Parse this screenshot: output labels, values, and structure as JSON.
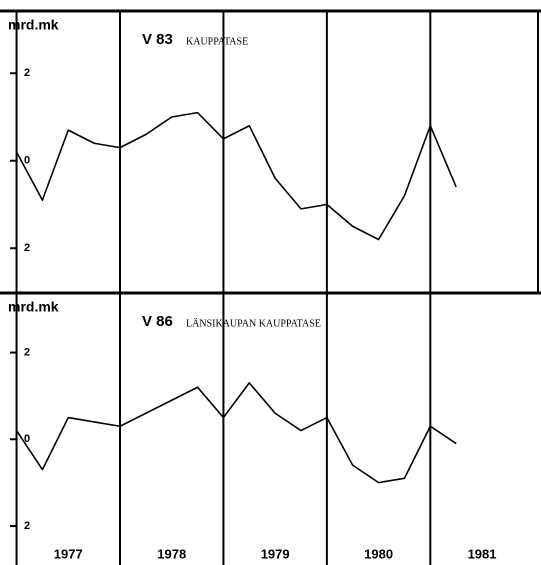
{
  "chart_data": [
    {
      "type": "line",
      "title": "V 83",
      "subtitle": "KAUPPATASE",
      "ylabel": "mrd.mk",
      "x": [
        1977,
        1977.25,
        1977.5,
        1977.75,
        1978,
        1978.25,
        1978.5,
        1978.75,
        1979,
        1979.25,
        1979.5,
        1979.75,
        1980,
        1980.25,
        1980.5,
        1980.75,
        1981,
        1981.25
      ],
      "series": [
        {
          "color": "#000000",
          "values": [
            0.2,
            -0.9,
            0.7,
            0.4,
            0.3,
            0.6,
            1.0,
            1.1,
            0.5,
            0.8,
            -0.4,
            -1.1,
            -1.0,
            -1.5,
            -1.8,
            -0.8,
            0.8,
            -0.6
          ]
        }
      ],
      "xlim": [
        1976.84,
        1982.07
      ],
      "ylim": [
        -3.0,
        3.4
      ],
      "yticks": [
        2,
        0,
        {
          "value": -2,
          "label": "2"
        }
      ]
    },
    {
      "type": "line",
      "title": "V 86",
      "subtitle": "LÄNSIKAUPAN KAUPPATASE",
      "ylabel": "mrd.mk",
      "x": [
        1977,
        1977.25,
        1977.5,
        1977.75,
        1978,
        1978.25,
        1978.5,
        1978.75,
        1979,
        1979.25,
        1979.5,
        1979.75,
        1980,
        1980.25,
        1980.5,
        1980.75,
        1981,
        1981.25
      ],
      "series": [
        {
          "color": "#000000",
          "values": [
            0.2,
            -0.7,
            0.5,
            0.4,
            0.3,
            0.6,
            0.9,
            1.2,
            0.5,
            1.3,
            0.6,
            0.2,
            0.5,
            -0.6,
            -1.0,
            -0.9,
            0.3,
            -0.1
          ]
        }
      ],
      "xlim": [
        1976.84,
        1982.07
      ],
      "ylim": [
        -2.9,
        3.35
      ],
      "yticks": [
        2,
        0,
        {
          "value": -2,
          "label": "2"
        }
      ],
      "xticks": [
        {
          "value": 1977,
          "label": "1977"
        },
        {
          "value": 1978,
          "label": "1978"
        },
        {
          "value": 1979,
          "label": "1979"
        },
        {
          "value": 1980,
          "label": "1980"
        },
        {
          "value": 1981,
          "label": "1981"
        }
      ]
    }
  ]
}
